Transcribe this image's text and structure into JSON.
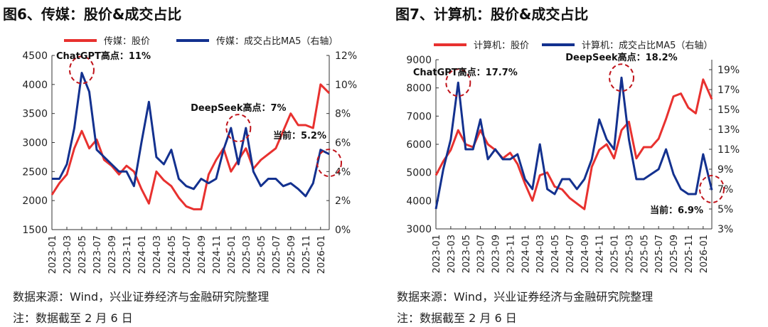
{
  "footer": {
    "source": "数据来源：Wind，兴业证券经济与金融研究院整理",
    "note": "注：数据截至 2 月 6 日"
  },
  "colors": {
    "price": "#e8312f",
    "turnover": "#13318f",
    "annotation": "#c0141b"
  },
  "chart_data": [
    {
      "type": "line",
      "title": "图6、传媒：股价&成交占比",
      "x_ticks": [
        "2023-01",
        "2023-03",
        "2023-05",
        "2023-07",
        "2023-09",
        "2023-11",
        "2024-01",
        "2024-03",
        "2024-05",
        "2024-07",
        "2024-09",
        "2024-11",
        "2025-01",
        "2025-03",
        "2025-05",
        "2025-07",
        "2025-09",
        "2025-11",
        "2026-01"
      ],
      "x": [
        "2023-01",
        "2023-02",
        "2023-03",
        "2023-04",
        "2023-05",
        "2023-06",
        "2023-07",
        "2023-08",
        "2023-09",
        "2023-10",
        "2023-11",
        "2023-12",
        "2024-01",
        "2024-02",
        "2024-03",
        "2024-04",
        "2024-05",
        "2024-06",
        "2024-07",
        "2024-08",
        "2024-09",
        "2024-10",
        "2024-11",
        "2024-12",
        "2025-01",
        "2025-02",
        "2025-03",
        "2025-04",
        "2025-05",
        "2025-06",
        "2025-07",
        "2025-08",
        "2025-09",
        "2025-10",
        "2025-11",
        "2025-12",
        "2026-01",
        "2026-02-06"
      ],
      "ylim_left": [
        1500,
        4500
      ],
      "yticks_left": [
        1500,
        2000,
        2500,
        3000,
        3500,
        4000,
        4500
      ],
      "ylim_right": [
        0,
        12
      ],
      "yticks_right": [
        "0%",
        "2%",
        "4%",
        "6%",
        "8%",
        "10%",
        "12%"
      ],
      "series": [
        {
          "name": "传媒：股价",
          "axis": "left",
          "values": [
            2100,
            2300,
            2450,
            2900,
            3200,
            2900,
            3050,
            2700,
            2600,
            2450,
            2600,
            2500,
            2200,
            1950,
            2500,
            2350,
            2250,
            2050,
            1900,
            1850,
            1850,
            2450,
            2700,
            2900,
            2500,
            2700,
            2900,
            2550,
            2700,
            2800,
            2900,
            3200,
            3500,
            3300,
            3300,
            3250,
            4000,
            3850
          ]
        },
        {
          "name": "传媒：成交占比MA5（右轴）",
          "axis": "right",
          "values": [
            3.5,
            3.5,
            4.5,
            7,
            10.8,
            9.5,
            5.5,
            5,
            4.5,
            4,
            4,
            3,
            6,
            8.8,
            5,
            4.5,
            5.5,
            3.5,
            3,
            2.8,
            3.5,
            3.2,
            3.5,
            5.5,
            7,
            4.5,
            7,
            4,
            3,
            3.5,
            3.5,
            3,
            3.2,
            2.8,
            2.3,
            3.2,
            5.5,
            5.2
          ]
        }
      ],
      "annotations": [
        {
          "text": "ChatGPT高点：11%",
          "x": "2023-05",
          "y": 11
        },
        {
          "text": "DeepSeek高点：7%",
          "x": "2025-02",
          "y": 7
        },
        {
          "text": "当前：5.2%",
          "x": "2026-02-06",
          "y": 4.6
        }
      ]
    },
    {
      "type": "line",
      "title": "图7、计算机：股价&成交占比",
      "x_ticks": [
        "2023-01",
        "2023-03",
        "2023-05",
        "2023-07",
        "2023-09",
        "2023-11",
        "2024-01",
        "2024-03",
        "2024-05",
        "2024-07",
        "2024-09",
        "2024-11",
        "2025-01",
        "2025-03",
        "2025-05",
        "2025-07",
        "2025-09",
        "2025-11",
        "2026-01"
      ],
      "x": [
        "2023-01",
        "2023-02",
        "2023-03",
        "2023-04",
        "2023-05",
        "2023-06",
        "2023-07",
        "2023-08",
        "2023-09",
        "2023-10",
        "2023-11",
        "2023-12",
        "2024-01",
        "2024-02",
        "2024-03",
        "2024-04",
        "2024-05",
        "2024-06",
        "2024-07",
        "2024-08",
        "2024-09",
        "2024-10",
        "2024-11",
        "2024-12",
        "2025-01",
        "2025-02",
        "2025-03",
        "2025-04",
        "2025-05",
        "2025-06",
        "2025-07",
        "2025-08",
        "2025-09",
        "2025-10",
        "2025-11",
        "2025-12",
        "2026-01",
        "2026-02-06"
      ],
      "ylim_left": [
        3000,
        9000
      ],
      "yticks_left": [
        3000,
        4000,
        5000,
        6000,
        7000,
        8000,
        9000
      ],
      "ylim_right": [
        3,
        20
      ],
      "yticks_right": [
        "3%",
        "5%",
        "7%",
        "9%",
        "11%",
        "13%",
        "15%",
        "17%",
        "19%"
      ],
      "series": [
        {
          "name": "计算机：股价",
          "axis": "left",
          "values": [
            4900,
            5400,
            5800,
            6500,
            6000,
            5900,
            6500,
            6000,
            5800,
            5500,
            5700,
            5300,
            4600,
            4000,
            4900,
            5000,
            4500,
            4400,
            4100,
            3900,
            3700,
            5200,
            5800,
            6000,
            5500,
            6500,
            6800,
            5500,
            5900,
            5900,
            6200,
            6900,
            7700,
            7800,
            7300,
            7100,
            8300,
            7600
          ]
        },
        {
          "name": "计算机：成交占比MA5（右轴）",
          "axis": "right",
          "values": [
            5,
            9,
            12,
            17.7,
            11,
            11,
            14,
            10,
            11,
            10,
            10,
            10.5,
            8,
            7,
            11.5,
            7,
            6.5,
            8,
            8,
            7,
            8,
            10,
            14,
            12,
            11,
            18.2,
            12,
            8,
            8,
            8.5,
            9,
            11,
            8.5,
            7,
            6.5,
            6.5,
            10.5,
            6.9
          ]
        }
      ],
      "annotations": [
        {
          "text": "ChatGPT高点：17.7%",
          "x": "2023-04",
          "y": 17.7
        },
        {
          "text": "DeepSeek高点：18.2%",
          "x": "2025-02",
          "y": 18.2
        },
        {
          "text": "当前：6.9%",
          "x": "2026-02-06",
          "y": 7
        }
      ]
    }
  ]
}
